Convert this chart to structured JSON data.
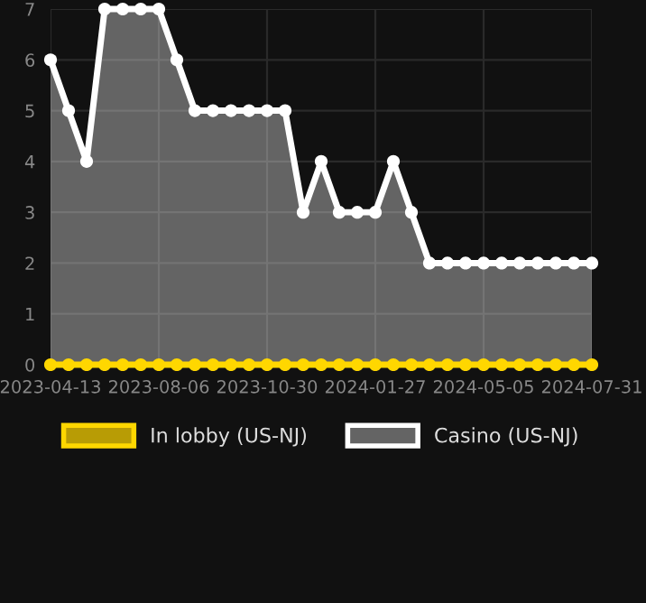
{
  "chart_data": {
    "type": "area",
    "categories": [
      "2023-04-13",
      null,
      null,
      null,
      null,
      null,
      "2023-08-06",
      null,
      null,
      null,
      null,
      null,
      "2023-10-30",
      null,
      null,
      null,
      null,
      null,
      "2024-01-27",
      null,
      null,
      null,
      null,
      null,
      "2024-05-05",
      null,
      null,
      null,
      null,
      null,
      "2024-07-31"
    ],
    "series": [
      {
        "name": "In lobby (US-NJ)",
        "type": "line",
        "color": "#ffd700",
        "values": [
          0,
          0,
          0,
          0,
          0,
          0,
          0,
          0,
          0,
          0,
          0,
          0,
          0,
          0,
          0,
          0,
          0,
          0,
          0,
          0,
          0,
          0,
          0,
          0,
          0,
          0,
          0,
          0,
          0,
          0,
          0
        ]
      },
      {
        "name": "Casino (US-NJ)",
        "color": "#ffffff",
        "values": [
          6,
          5,
          4,
          7,
          7,
          7,
          7,
          6,
          5,
          5,
          5,
          5,
          5,
          5,
          3,
          4,
          3,
          3,
          3,
          4,
          3,
          2,
          2,
          2,
          2,
          2,
          2,
          2,
          2,
          2,
          2
        ]
      }
    ],
    "ylim": [
      0,
      7
    ],
    "yticks": [
      0,
      1,
      2,
      3,
      4,
      5,
      6,
      7
    ],
    "grid": true,
    "legend": "bottom",
    "marker": "circle",
    "line_style": "solid"
  }
}
